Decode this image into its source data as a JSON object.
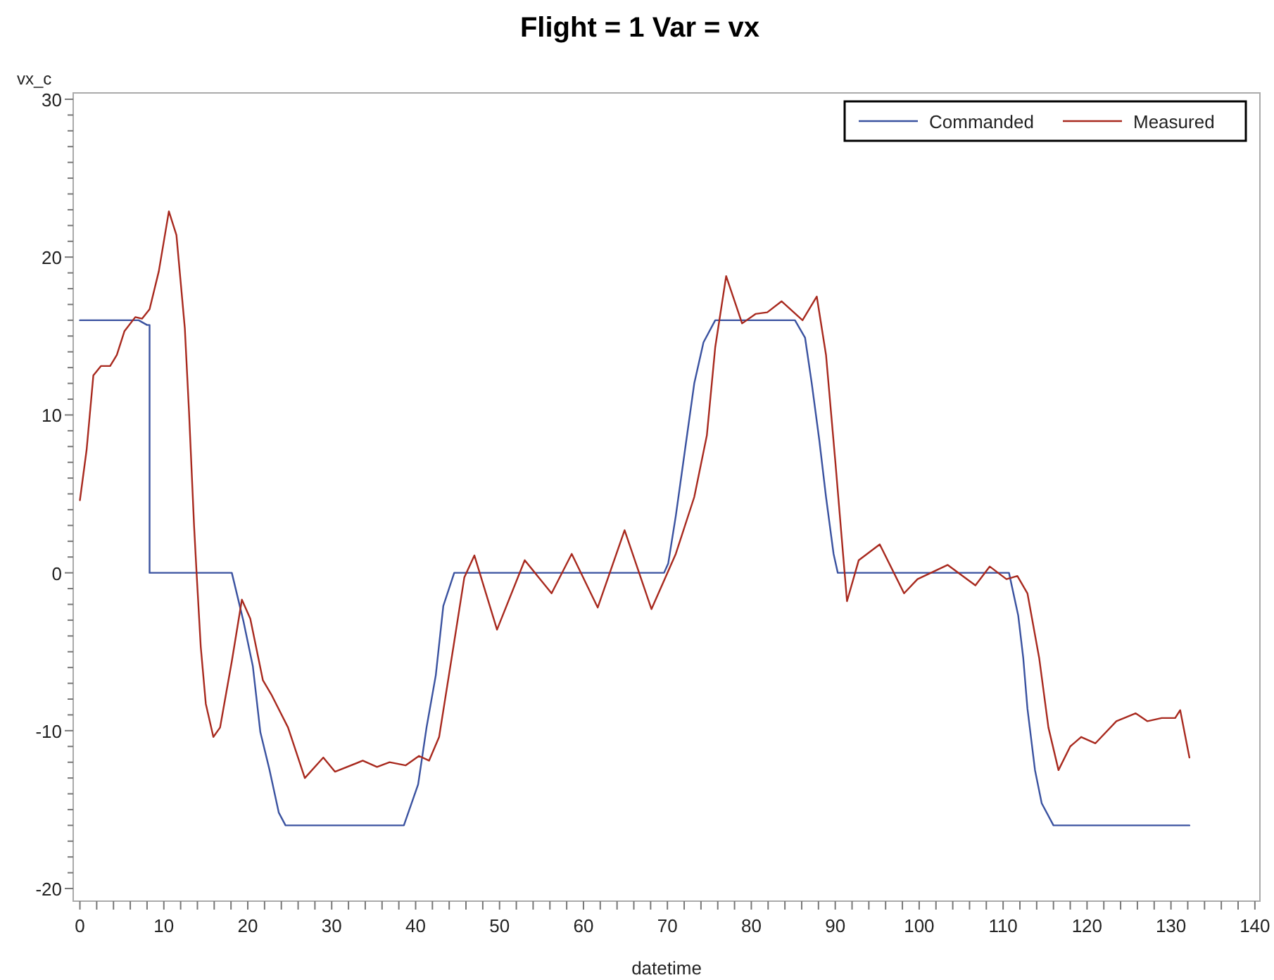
{
  "chart_data": {
    "type": "line",
    "title": "Flight = 1 Var = vx",
    "xlabel": "datetime",
    "ylabel": "vx_c",
    "xlim": [
      -0.8,
      140.6
    ],
    "ylim": [
      -20.8,
      30.4
    ],
    "xticks": [
      0,
      {
        "value": 2,
        "label": null
      },
      {
        "value": 4,
        "label": null
      },
      {
        "value": 6,
        "label": null
      },
      {
        "value": 8,
        "label": null
      },
      10,
      {
        "value": 12,
        "label": null
      },
      {
        "value": 14,
        "label": null
      },
      {
        "value": 16,
        "label": null
      },
      {
        "value": 18,
        "label": null
      },
      20,
      {
        "value": 22,
        "label": null
      },
      {
        "value": 24,
        "label": null
      },
      {
        "value": 26,
        "label": null
      },
      {
        "value": 28,
        "label": null
      },
      30,
      {
        "value": 32,
        "label": null
      },
      {
        "value": 34,
        "label": null
      },
      {
        "value": 36,
        "label": null
      },
      {
        "value": 38,
        "label": null
      },
      40,
      {
        "value": 42,
        "label": null
      },
      {
        "value": 44,
        "label": null
      },
      {
        "value": 46,
        "label": null
      },
      {
        "value": 48,
        "label": null
      },
      50,
      {
        "value": 52,
        "label": null
      },
      {
        "value": 54,
        "label": null
      },
      {
        "value": 56,
        "label": null
      },
      {
        "value": 58,
        "label": null
      },
      60,
      {
        "value": 62,
        "label": null
      },
      {
        "value": 64,
        "label": null
      },
      {
        "value": 66,
        "label": null
      },
      {
        "value": 68,
        "label": null
      },
      70,
      {
        "value": 72,
        "label": null
      },
      {
        "value": 74,
        "label": null
      },
      {
        "value": 76,
        "label": null
      },
      {
        "value": 78,
        "label": null
      },
      80,
      {
        "value": 82,
        "label": null
      },
      {
        "value": 84,
        "label": null
      },
      {
        "value": 86,
        "label": null
      },
      {
        "value": 88,
        "label": null
      },
      90,
      {
        "value": 92,
        "label": null
      },
      {
        "value": 94,
        "label": null
      },
      {
        "value": 96,
        "label": null
      },
      {
        "value": 98,
        "label": null
      },
      100,
      {
        "value": 102,
        "label": null
      },
      {
        "value": 104,
        "label": null
      },
      {
        "value": 106,
        "label": null
      },
      {
        "value": 108,
        "label": null
      },
      110,
      {
        "value": 112,
        "label": null
      },
      {
        "value": 114,
        "label": null
      },
      {
        "value": 116,
        "label": null
      },
      {
        "value": 118,
        "label": null
      },
      120,
      {
        "value": 122,
        "label": null
      },
      {
        "value": 124,
        "label": null
      },
      {
        "value": 126,
        "label": null
      },
      {
        "value": 128,
        "label": null
      },
      130,
      {
        "value": 132,
        "label": null
      },
      {
        "value": 134,
        "label": null
      },
      {
        "value": 136,
        "label": null
      },
      {
        "value": 138,
        "label": null
      },
      140
    ],
    "yticks": [
      -20,
      {
        "value": -19,
        "label": null
      },
      {
        "value": -18,
        "label": null
      },
      {
        "value": -17,
        "label": null
      },
      {
        "value": -16,
        "label": null
      },
      {
        "value": -15,
        "label": null
      },
      {
        "value": -14,
        "label": null
      },
      {
        "value": -13,
        "label": null
      },
      {
        "value": -12,
        "label": null
      },
      {
        "value": -11,
        "label": null
      },
      -10,
      {
        "value": -9,
        "label": null
      },
      {
        "value": -8,
        "label": null
      },
      {
        "value": -7,
        "label": null
      },
      {
        "value": -6,
        "label": null
      },
      {
        "value": -5,
        "label": null
      },
      {
        "value": -4,
        "label": null
      },
      {
        "value": -3,
        "label": null
      },
      {
        "value": -2,
        "label": null
      },
      {
        "value": -1,
        "label": null
      },
      0,
      {
        "value": 1,
        "label": null
      },
      {
        "value": 2,
        "label": null
      },
      {
        "value": 3,
        "label": null
      },
      {
        "value": 4,
        "label": null
      },
      {
        "value": 5,
        "label": null
      },
      {
        "value": 6,
        "label": null
      },
      {
        "value": 7,
        "label": null
      },
      {
        "value": 8,
        "label": null
      },
      {
        "value": 9,
        "label": null
      },
      10,
      {
        "value": 11,
        "label": null
      },
      {
        "value": 12,
        "label": null
      },
      {
        "value": 13,
        "label": null
      },
      {
        "value": 14,
        "label": null
      },
      {
        "value": 15,
        "label": null
      },
      {
        "value": 16,
        "label": null
      },
      {
        "value": 17,
        "label": null
      },
      {
        "value": 18,
        "label": null
      },
      {
        "value": 19,
        "label": null
      },
      20,
      {
        "value": 21,
        "label": null
      },
      {
        "value": 22,
        "label": null
      },
      {
        "value": 23,
        "label": null
      },
      {
        "value": 24,
        "label": null
      },
      {
        "value": 25,
        "label": null
      },
      {
        "value": 26,
        "label": null
      },
      {
        "value": 27,
        "label": null
      },
      {
        "value": 28,
        "label": null
      },
      {
        "value": 29,
        "label": null
      },
      30
    ],
    "grid": false,
    "legend": "top right",
    "marker": "none",
    "line_style": "solid",
    "series": [
      {
        "name": "Commanded",
        "color": "#3a52a0",
        "x": [
          0,
          7,
          8,
          8.3,
          8.3,
          18.1,
          19.5,
          20.6,
          21.5,
          22.6,
          23.7,
          24.5,
          38.6,
          40.3,
          41.3,
          42.4,
          43.3,
          44.6,
          69.6,
          70.1,
          71,
          72.1,
          73.2,
          74.3,
          75.7,
          85.2,
          86.4,
          87.2,
          88.1,
          88.9,
          89.8,
          90.3,
          110.7,
          111.8,
          112.4,
          112.9,
          113.8,
          114.6,
          116,
          132.2
        ],
        "values": [
          16,
          16,
          15.7,
          15.7,
          0,
          0,
          -3.1,
          -5.9,
          -10.1,
          -12.5,
          -15.2,
          -16,
          -16,
          -13.4,
          -9.8,
          -6.5,
          -2.1,
          0,
          0,
          0.6,
          3.6,
          7.8,
          12,
          14.6,
          16,
          16,
          14.9,
          12,
          8.4,
          4.8,
          1.2,
          0,
          0,
          -2.7,
          -5.4,
          -8.6,
          -12.5,
          -14.6,
          -16,
          -16
        ]
      },
      {
        "name": "Measured",
        "color": "#a8291e",
        "x": [
          0,
          0.8,
          1.6,
          2.5,
          3.6,
          4.4,
          5.3,
          6.6,
          7.4,
          8.3,
          9.4,
          10.6,
          11.5,
          12.5,
          13,
          13.6,
          13.9,
          14.4,
          15,
          15.9,
          16.7,
          18.1,
          19.3,
          20.3,
          21.8,
          22.8,
          24.8,
          26.8,
          29,
          30.4,
          33.7,
          35.4,
          36.9,
          38.8,
          40.4,
          41.6,
          42.8,
          44.5,
          45.8,
          47,
          49.7,
          53,
          56.2,
          58.6,
          61.7,
          64.9,
          68.1,
          71,
          73.2,
          74.7,
          75.7,
          77,
          78.9,
          80.5,
          81.9,
          83.6,
          86.1,
          87.8,
          88.9,
          90,
          91.4,
          92.8,
          95.3,
          98.2,
          99.8,
          103.4,
          106.7,
          108.4,
          110.4,
          111.7,
          112.9,
          114.3,
          115.4,
          116.6,
          118,
          119.3,
          121,
          123.5,
          125.8,
          127.2,
          128.9,
          130.5,
          131.1,
          132.2
        ],
        "values": [
          4.6,
          7.8,
          12.5,
          13.1,
          13.1,
          13.8,
          15.3,
          16.2,
          16.1,
          16.7,
          19.1,
          22.9,
          21.4,
          15.5,
          10.2,
          3,
          0,
          -4.7,
          -8.3,
          -10.4,
          -9.8,
          -5.6,
          -1.7,
          -2.9,
          -6.8,
          -7.7,
          -9.8,
          -13,
          -11.7,
          -12.6,
          -11.9,
          -12.3,
          -12,
          -12.2,
          -11.6,
          -11.9,
          -10.4,
          -4.7,
          -0.3,
          1.1,
          -3.6,
          0.8,
          -1.3,
          1.2,
          -2.2,
          2.7,
          -2.3,
          1.2,
          4.8,
          8.7,
          14.3,
          18.8,
          15.8,
          16.4,
          16.5,
          17.2,
          16,
          17.5,
          13.8,
          7.1,
          -1.8,
          0.8,
          1.8,
          -1.3,
          -0.4,
          0.5,
          -0.8,
          0.4,
          -0.4,
          -0.2,
          -1.3,
          -5.4,
          -9.8,
          -12.5,
          -11,
          -10.4,
          -10.8,
          -9.4,
          -8.9,
          -9.4,
          -9.2,
          -9.2,
          -8.7,
          -11.7
        ]
      }
    ]
  }
}
